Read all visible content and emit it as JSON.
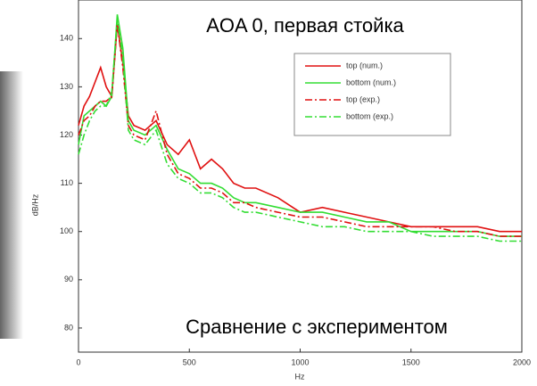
{
  "chart_data": {
    "type": "line",
    "title": "AOA 0, первая стойка",
    "annotations": [
      "Сравнение с экспериментом"
    ],
    "x_label": "Hz",
    "y_label": "dB/Hz",
    "x": [
      0,
      25,
      50,
      75,
      100,
      125,
      150,
      175,
      200,
      225,
      250,
      300,
      350,
      400,
      450,
      500,
      550,
      600,
      650,
      700,
      750,
      800,
      900,
      1000,
      1100,
      1200,
      1300,
      1400,
      1500,
      1600,
      1700,
      1800,
      1900,
      2000
    ],
    "series": [
      {
        "name": "top (num.)",
        "color": "#e01010",
        "style": "solid",
        "values": [
          122,
          126,
          128,
          131,
          134,
          130,
          128,
          143,
          135,
          124,
          122,
          121,
          123,
          118,
          116,
          119,
          113,
          115,
          113,
          110,
          109,
          109,
          107,
          104,
          105,
          104,
          103,
          102,
          101,
          101,
          101,
          101,
          100,
          100
        ]
      },
      {
        "name": "bottom (num.)",
        "color": "#33dd33",
        "style": "solid",
        "values": [
          118,
          124,
          125,
          126,
          127,
          126,
          128,
          145,
          138,
          123,
          121,
          120,
          122,
          117,
          113,
          112,
          110,
          110,
          109,
          107,
          106,
          106,
          105,
          104,
          104,
          103,
          102,
          102,
          100,
          100,
          100,
          100,
          99,
          99
        ]
      },
      {
        "name": "top (exp.)",
        "color": "#e01010",
        "style": "dashed",
        "values": [
          120,
          123,
          124,
          126,
          127,
          127,
          128,
          143,
          134,
          122,
          120,
          119,
          125,
          116,
          112,
          111,
          109,
          109,
          108,
          106,
          106,
          105,
          104,
          103,
          103,
          102,
          101,
          101,
          101,
          101,
          100,
          100,
          99,
          99
        ]
      },
      {
        "name": "bottom (exp.)",
        "color": "#33dd33",
        "style": "dashed",
        "values": [
          116,
          120,
          123,
          125,
          126,
          126,
          129,
          144,
          136,
          121,
          119,
          118,
          121,
          114,
          111,
          110,
          108,
          108,
          107,
          105,
          104,
          104,
          103,
          102,
          101,
          101,
          100,
          100,
          100,
          99,
          99,
          99,
          98,
          98
        ]
      }
    ],
    "xlim": [
      0,
      2000
    ],
    "xticks": [
      0,
      500,
      1000,
      1500,
      2000
    ],
    "ylim": [
      75,
      148
    ],
    "yticks": [
      80,
      90,
      100,
      110,
      120,
      130,
      140
    ],
    "legend": "upper right"
  }
}
